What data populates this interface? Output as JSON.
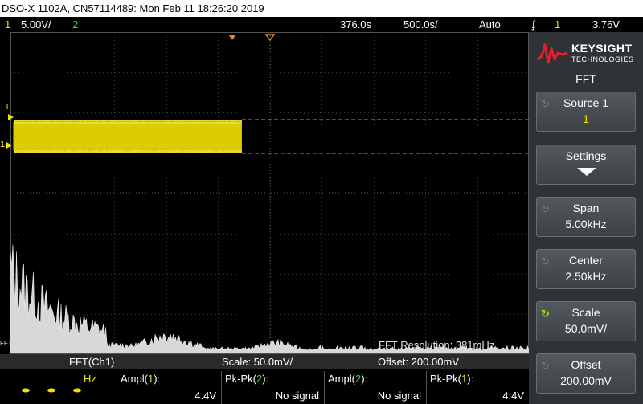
{
  "title_bar": "DSO-X 1102A, CN57114489: Mon Feb 11 18:26:20 2019",
  "status": {
    "ch1_num": "1",
    "ch1_scale": "5.00V/",
    "ch2_num": "2",
    "time_offset": "376.0s",
    "time_scale": "500.0s/",
    "trigger_mode": "Auto",
    "trigger_icon": "trigger-edge-icon",
    "trigger_glyph": "ʄ",
    "trigger_channel": "1",
    "trigger_level": "3.76V"
  },
  "screen": {
    "ch1_marker": "1",
    "trigger_marker": "T",
    "fft_marker": "FFT",
    "fft_resolution": "FFT Resolution: 381mHz"
  },
  "fft_bar": {
    "source": "FFT(Ch1)",
    "scale": "Scale: 50.0mV/",
    "offset": "Offset: 200.00mV"
  },
  "measurements": {
    "unit": "Hz",
    "items": [
      {
        "label_prefix": "Ampl(",
        "channel": "1",
        "label_suffix": "):",
        "value": "4.4V",
        "color": "#f3e400"
      },
      {
        "label_prefix": "Pk-Pk(",
        "channel": "2",
        "label_suffix": "):",
        "value": "No signal",
        "color": "#46d146"
      },
      {
        "label_prefix": "Ampl(",
        "channel": "2",
        "label_suffix": "):",
        "value": "No signal",
        "color": "#46d146"
      },
      {
        "label_prefix": "Pk-Pk(",
        "channel": "1",
        "label_suffix": "):",
        "value": "4.4V",
        "color": "#f3e400"
      }
    ]
  },
  "side_panel": {
    "brand": "KEYSIGHT",
    "brand_sub": "TECHNOLOGIES",
    "menu_title": "FFT",
    "softkeys": [
      {
        "label": "Source 1",
        "value": "1"
      },
      {
        "label": "Settings",
        "value": ""
      },
      {
        "label": "Span",
        "value": "5.00kHz"
      },
      {
        "label": "Center",
        "value": "2.50kHz"
      },
      {
        "label": "Scale",
        "value": "50.0mV/"
      },
      {
        "label": "Offset",
        "value": "200.00mV"
      }
    ]
  },
  "colors": {
    "ch1": "#f3e400",
    "ch2": "#46d146",
    "fft_trace": "#d8d8d8",
    "trigger_line": "#e08a1a",
    "panel": "#2f3336"
  }
}
